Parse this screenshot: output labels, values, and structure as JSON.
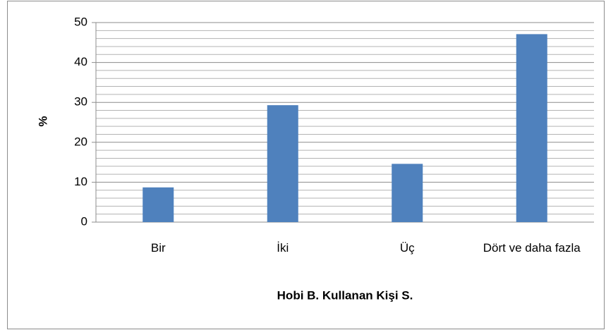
{
  "chart_data": {
    "type": "bar",
    "x_label": "Hobi B. Kullanan Kişi S.",
    "y_label": "%",
    "categories": [
      "Bir",
      "İki",
      "Üç",
      "Dört ve daha fazla"
    ],
    "values": [
      8.7,
      29.3,
      14.6,
      47.1
    ],
    "color": "#4f81bd",
    "ylim": [
      0,
      50
    ],
    "yticks": [
      0,
      10,
      20,
      30,
      40,
      50
    ],
    "minor_yticks": [
      2,
      4,
      6,
      8,
      12,
      14,
      16,
      18,
      22,
      24,
      26,
      28,
      32,
      34,
      36,
      38,
      42,
      44,
      46,
      48
    ],
    "grid": true
  }
}
